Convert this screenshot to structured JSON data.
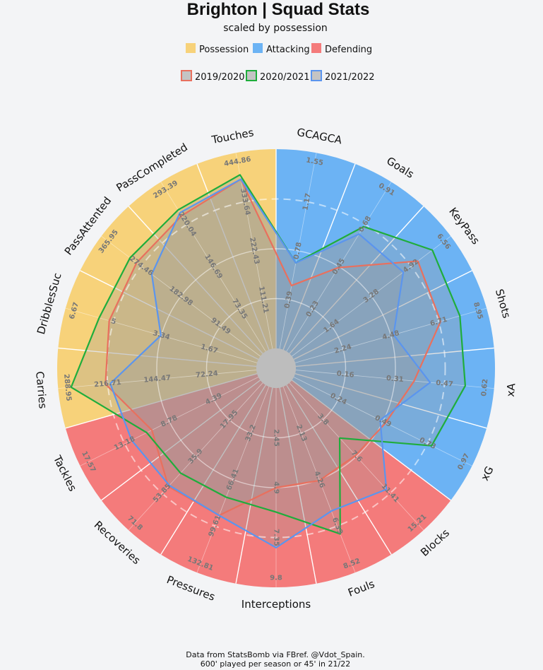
{
  "title": "Brighton | Squad Stats",
  "subtitle": "scaled by possession",
  "legend_groups": [
    {
      "name": "Possession",
      "color": "#f7d27a"
    },
    {
      "name": "Attacking",
      "color": "#6cb3f4"
    },
    {
      "name": "Defending",
      "color": "#f47b7b"
    }
  ],
  "legend_seasons": [
    {
      "name": "2019/2020",
      "color": "#e8705e"
    },
    {
      "name": "2020/2021",
      "color": "#1fad3c"
    },
    {
      "name": "2021/2022",
      "color": "#5b95ee"
    }
  ],
  "footer": {
    "line1": "Data from StatsBomb via FBref. @Vdot_Spain.",
    "line2": "600' played per season or 45' in 21/22"
  },
  "chart_data": {
    "type": "radar",
    "categories": [
      {
        "name": "GCAGCA",
        "group": "Attacking",
        "max": "1.55",
        "ticks": [
          "0.39",
          "0.78",
          "1.17"
        ]
      },
      {
        "name": "Goals",
        "group": "Attacking",
        "max": "0.91",
        "ticks": [
          "0.23",
          "0.45",
          "0.68"
        ]
      },
      {
        "name": "KeyPass",
        "group": "Attacking",
        "max": "6.56",
        "ticks": [
          "1.64",
          "3.28",
          "4.92"
        ]
      },
      {
        "name": "Shots",
        "group": "Attacking",
        "max": "8.95",
        "ticks": [
          "2.24",
          "4.48",
          "6.71"
        ]
      },
      {
        "name": "xA",
        "group": "Attacking",
        "max": "0.62",
        "ticks": [
          "0.16",
          "0.31",
          "0.47"
        ]
      },
      {
        "name": "xG",
        "group": "Attacking",
        "max": "0.97",
        "ticks": [
          "0.24",
          "0.49",
          "0.73"
        ]
      },
      {
        "name": "Blocks",
        "group": "Defending",
        "max": "15.21",
        "ticks": [
          "3.8",
          "7.6",
          "11.41"
        ]
      },
      {
        "name": "Fouls",
        "group": "Defending",
        "max": "8.52",
        "ticks": [
          "2.13",
          "4.26",
          "6.39"
        ]
      },
      {
        "name": "Interceptions",
        "group": "Defending",
        "max": "9.8",
        "ticks": [
          "2.45",
          "4.9",
          "7.35"
        ]
      },
      {
        "name": "Pressures",
        "group": "Defending",
        "max": "132.81",
        "ticks": [
          "33.2",
          "66.41",
          "99.61"
        ]
      },
      {
        "name": "Recoveries",
        "group": "Defending",
        "max": "71.8",
        "ticks": [
          "17.95",
          "35.9",
          "53.85"
        ]
      },
      {
        "name": "Tackles",
        "group": "Defending",
        "max": "17.57",
        "ticks": [
          "4.39",
          "8.78",
          "13.18"
        ]
      },
      {
        "name": "Carries",
        "group": "Possession",
        "max": "288.95",
        "ticks": [
          "72.24",
          "144.47",
          "216.71"
        ]
      },
      {
        "name": "DribblesSuc",
        "group": "Possession",
        "max": "6.67",
        "ticks": [
          "1.67",
          "3.34",
          "5"
        ]
      },
      {
        "name": "PassAttented",
        "group": "Possession",
        "max": "365.95",
        "ticks": [
          "91.49",
          "182.98",
          "274.46"
        ]
      },
      {
        "name": "PassCompleted",
        "group": "Possession",
        "max": "293.39",
        "ticks": [
          "73.35",
          "146.69",
          "220.04"
        ]
      },
      {
        "name": "Touches",
        "group": "Possession",
        "max": "444.86",
        "ticks": [
          "111.21",
          "222.43",
          "333.64"
        ]
      }
    ],
    "max_values": [
      1.55,
      0.91,
      6.56,
      8.95,
      0.62,
      0.97,
      15.21,
      8.52,
      9.8,
      132.81,
      71.8,
      17.57,
      288.95,
      6.67,
      365.95,
      293.39,
      444.86
    ],
    "series": [
      {
        "name": "2019/2020",
        "values": [
          0.5,
          0.45,
          5.2,
          6.8,
          0.37,
          0.5,
          7.5,
          4.3,
          4.9,
          92.0,
          50.5,
          10.5,
          220.0,
          5.15,
          285.0,
          235.0,
          385.0
        ]
      },
      {
        "name": "2020/2021",
        "values": [
          0.68,
          0.67,
          5.8,
          7.7,
          0.53,
          0.75,
          5.7,
          6.75,
          6.1,
          79.0,
          44.0,
          11.0,
          270.0,
          5.5,
          300.0,
          245.0,
          395.0
        ]
      },
      {
        "name": "2021/2022",
        "values": [
          0.68,
          0.63,
          4.6,
          4.6,
          0.42,
          0.47,
          11.0,
          5.7,
          7.85,
          92.0,
          50.0,
          12.5,
          213.0,
          3.35,
          250.0,
          240.0,
          385.0
        ]
      }
    ],
    "scale": "linear, 0 to max per axis"
  }
}
